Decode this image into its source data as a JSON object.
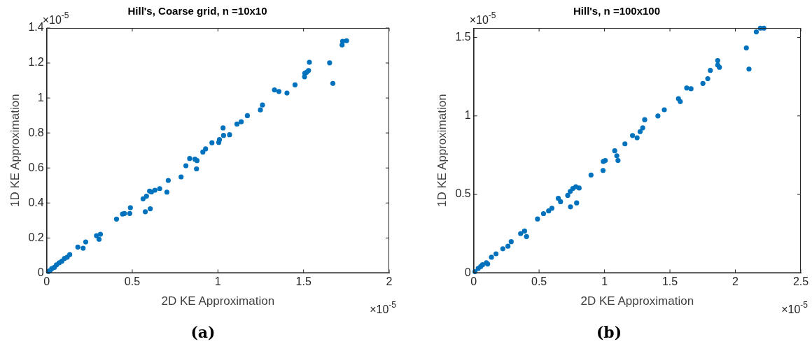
{
  "chart_data": [
    {
      "type": "scatter",
      "title": "Hill's, Coarse grid, n =10x10",
      "xlabel": "2D KE Approximation",
      "ylabel": "1D KE Approximation",
      "xlim": [
        0,
        2
      ],
      "xticks": [
        0,
        0.5,
        1,
        1.5,
        2
      ],
      "ylim": [
        0,
        1.4
      ],
      "yticks": [
        0,
        0.2,
        0.4,
        0.6,
        0.8,
        1,
        1.2,
        1.4
      ],
      "grid": false,
      "marker": "circle",
      "annotations": [
        "×10$^{-5}$",
        "×10$^{-5}$",
        "(a)"
      ],
      "series": [
        {
          "color": "#0072bd",
          "x": [
            1.751,
            1.728,
            1.725,
            1.534,
            1.529,
            1.518,
            1.507,
            1.506,
            1.652,
            1.671,
            1.45,
            1.403,
            1.356,
            1.33,
            1.26,
            1.248,
            1.172,
            1.136,
            1.111,
            1.068,
            1.033,
            1.03,
            1.009,
            1.005,
            0.965,
            0.928,
            0.912,
            0.878,
            0.875,
            0.866,
            0.835,
            0.813,
            0.785,
            0.71,
            0.702,
            0.66,
            0.632,
            0.612,
            0.601,
            0.583,
            0.563,
            0.605,
            0.576,
            0.489,
            0.485,
            0.454,
            0.443,
            0.408,
            0.314,
            0.306,
            0.291,
            0.228,
            0.213,
            0.182,
            0.135,
            0.12,
            0.104,
            0.089,
            0.073,
            0.057,
            0.045,
            0.03,
            0.019,
            0.011
          ],
          "values": [
            1.327,
            1.324,
            1.303,
            1.204,
            1.157,
            1.147,
            1.141,
            1.121,
            1.201,
            1.083,
            1.075,
            1.028,
            1.037,
            1.046,
            0.96,
            0.932,
            0.899,
            0.864,
            0.851,
            0.79,
            0.786,
            0.829,
            0.762,
            0.746,
            0.744,
            0.709,
            0.691,
            0.642,
            0.595,
            0.65,
            0.654,
            0.613,
            0.549,
            0.529,
            0.462,
            0.482,
            0.473,
            0.463,
            0.468,
            0.439,
            0.424,
            0.367,
            0.35,
            0.373,
            0.34,
            0.34,
            0.337,
            0.308,
            0.221,
            0.192,
            0.213,
            0.177,
            0.141,
            0.148,
            0.105,
            0.09,
            0.083,
            0.068,
            0.058,
            0.046,
            0.032,
            0.025,
            0.013,
            0.009
          ]
        }
      ]
    },
    {
      "type": "scatter",
      "title": "Hill's, n =100x100",
      "xlabel": "2D KE Approximation",
      "ylabel": "1D KE Approximation",
      "xlim": [
        0,
        2.5
      ],
      "xticks": [
        0,
        0.5,
        1,
        1.5,
        2,
        2.5
      ],
      "ylim": [
        0,
        1.56
      ],
      "yticks": [
        0,
        0.5,
        1,
        1.5
      ],
      "grid": false,
      "marker": "circle",
      "annotations": [
        "×10$^{-5}$",
        "×10$^{-5}$",
        "(b)"
      ],
      "series": [
        {
          "color": "#0072bd",
          "x": [
            2.218,
            2.191,
            2.16,
            2.084,
            2.104,
            1.865,
            1.865,
            1.878,
            1.809,
            1.789,
            1.752,
            1.661,
            1.628,
            1.579,
            1.565,
            1.457,
            1.408,
            1.307,
            1.292,
            1.272,
            1.249,
            1.214,
            1.156,
            1.103,
            1.094,
            1.082,
            1.078,
            1.006,
            0.991,
            0.989,
            0.897,
            0.806,
            0.781,
            0.758,
            0.738,
            0.719,
            0.787,
            0.74,
            0.664,
            0.647,
            0.602,
            0.598,
            0.573,
            0.534,
            0.488,
            0.404,
            0.389,
            0.359,
            0.287,
            0.262,
            0.223,
            0.171,
            0.136,
            0.107,
            0.097,
            0.068,
            0.054,
            0.035,
            0.01
          ],
          "values": [
            1.559,
            1.559,
            1.535,
            1.433,
            1.298,
            1.353,
            1.324,
            1.31,
            1.29,
            1.237,
            1.207,
            1.173,
            1.178,
            1.091,
            1.11,
            1.039,
            1.0,
            0.976,
            0.924,
            0.9,
            0.861,
            0.875,
            0.822,
            0.716,
            0.746,
            null,
            0.778,
            0.716,
            0.71,
            0.653,
            0.624,
            0.541,
            0.549,
            0.538,
            0.519,
            0.494,
            0.446,
            0.421,
            0.454,
            0.475,
            null,
            0.412,
            0.395,
            0.378,
            0.344,
            0.232,
            0.267,
            0.251,
            0.199,
            0.17,
            0.154,
            0.122,
            0.1,
            0.057,
            0.065,
            0.052,
            0.041,
            0.029,
            0.008
          ]
        }
      ]
    }
  ]
}
